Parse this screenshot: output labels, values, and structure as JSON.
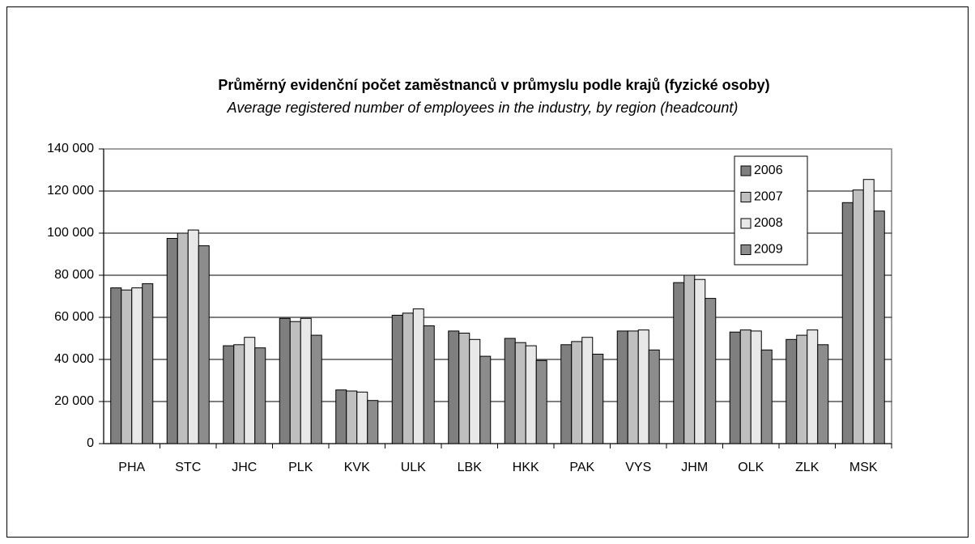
{
  "chart_data": {
    "type": "bar",
    "title": "Průměrný evidenční počet zaměstnanců v průmyslu podle krajů (fyzické osoby)",
    "subtitle": "Average registered number of employees in the industry, by region (headcount)",
    "categories": [
      "PHA",
      "STC",
      "JHC",
      "PLK",
      "KVK",
      "ULK",
      "LBK",
      "HKK",
      "PAK",
      "VYS",
      "JHM",
      "OLK",
      "ZLK",
      "MSK"
    ],
    "series": [
      {
        "name": "2006",
        "color": "#7f7f7f",
        "values": [
          74000,
          97500,
          46500,
          59500,
          25500,
          61000,
          53500,
          50000,
          47000,
          53500,
          76500,
          53000,
          49500,
          114500
        ]
      },
      {
        "name": "2007",
        "color": "#bfbfbf",
        "values": [
          73000,
          100000,
          47000,
          58000,
          25000,
          62000,
          52500,
          48000,
          48500,
          53500,
          80000,
          54000,
          51500,
          120500
        ]
      },
      {
        "name": "2008",
        "color": "#e8e8e8",
        "values": [
          74000,
          101500,
          50500,
          59500,
          24500,
          64000,
          49500,
          46500,
          50500,
          54000,
          78000,
          53500,
          54000,
          125500
        ]
      },
      {
        "name": "2009",
        "color": "#8c8c8c",
        "values": [
          76000,
          94000,
          45500,
          51500,
          20500,
          56000,
          41500,
          39500,
          42500,
          44500,
          69000,
          44500,
          47000,
          110500
        ]
      }
    ],
    "ylim": [
      0,
      140000
    ],
    "yticks": [
      0,
      {
        "value": 20000,
        "label": "20 000"
      },
      {
        "value": 40000,
        "label": "40 000"
      },
      {
        "value": 60000,
        "label": "60 000"
      },
      {
        "value": 80000,
        "label": "80 000"
      },
      {
        "value": 100000,
        "label": "100 000"
      },
      {
        "value": 120000,
        "label": "120 000"
      },
      {
        "value": 140000,
        "label": "140 000"
      }
    ],
    "grid": true,
    "legend": "top-right"
  }
}
